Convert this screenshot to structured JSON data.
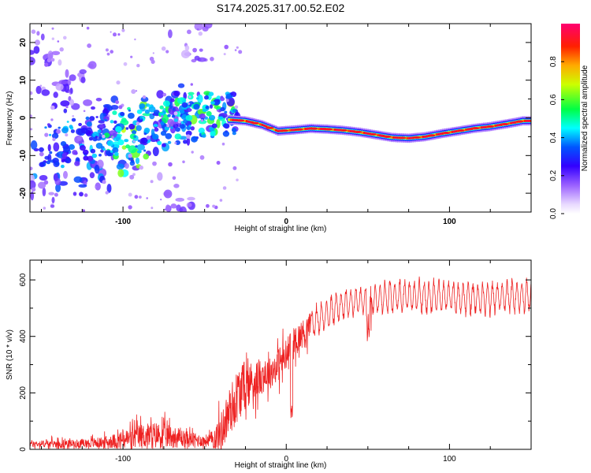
{
  "chart_data": [
    {
      "type": "heatmap",
      "title": "S174.2025.317.00.52.E02",
      "xlabel": "Height of straight line (km)",
      "ylabel": "Frequency (Hz)",
      "xlim": [
        -157,
        150
      ],
      "ylim": [
        -25,
        25
      ],
      "x_ticks": [
        -100,
        0,
        100
      ],
      "y_ticks": [
        -20,
        -10,
        0,
        10,
        20
      ],
      "x_tick_labels": [
        "-100",
        "0",
        "100"
      ],
      "y_tick_labels": [
        "-20",
        "-10",
        "0",
        "10",
        "20"
      ],
      "colorbar": {
        "label": "Normalized spectral amplitude",
        "range": [
          0,
          1
        ],
        "ticks": [
          0,
          0.2,
          0.4,
          0.6,
          0.8
        ],
        "tick_labels": [
          "0.0",
          "0.2",
          "0.4",
          "0.6",
          "0.8"
        ],
        "colors": [
          "#ffffff",
          "#b090ff",
          "#6a00ff",
          "#0000ff",
          "#00ffff",
          "#00ff00",
          "#ffff00",
          "#ff8000",
          "#ff0000",
          "#ff0080"
        ]
      },
      "ridge": {
        "x": [
          -35,
          -25,
          -15,
          -5,
          5,
          15,
          25,
          35,
          45,
          55,
          65,
          75,
          85,
          95,
          105,
          115,
          125,
          135,
          145
        ],
        "y": [
          -0.5,
          -0.8,
          -1.8,
          -3.5,
          -3.2,
          -2.8,
          -3.0,
          -3.3,
          -3.8,
          -4.5,
          -5.2,
          -5.4,
          -5.0,
          -4.2,
          -3.5,
          -2.8,
          -2.3,
          -1.6,
          -0.8
        ]
      },
      "scatter_blobs": [
        {
          "x": -150,
          "y": 18,
          "a": 0.18
        },
        {
          "x": -140,
          "y": 6,
          "a": 0.22
        },
        {
          "x": -130,
          "y": 12,
          "a": 0.18
        },
        {
          "x": -120,
          "y": -2,
          "a": 0.28
        },
        {
          "x": -145,
          "y": -12,
          "a": 0.3
        },
        {
          "x": -110,
          "y": -8,
          "a": 0.35
        },
        {
          "x": -100,
          "y": -10,
          "a": 0.5
        },
        {
          "x": -95,
          "y": -6,
          "a": 0.55
        },
        {
          "x": -85,
          "y": -4,
          "a": 0.4
        },
        {
          "x": -78,
          "y": 2,
          "a": 0.5
        },
        {
          "x": -70,
          "y": -2,
          "a": 0.38
        },
        {
          "x": -62,
          "y": 4,
          "a": 0.42
        },
        {
          "x": -55,
          "y": 2,
          "a": 0.48
        },
        {
          "x": -45,
          "y": 3,
          "a": 0.55
        },
        {
          "x": -40,
          "y": 1,
          "a": 0.5
        },
        {
          "x": -130,
          "y": -16,
          "a": 0.3
        },
        {
          "x": -105,
          "y": -14,
          "a": 0.32
        },
        {
          "x": -150,
          "y": -20,
          "a": 0.2
        },
        {
          "x": -60,
          "y": 20,
          "a": 0.15
        },
        {
          "x": -70,
          "y": -20,
          "a": 0.18
        },
        {
          "x": -115,
          "y": 0,
          "a": 0.28
        }
      ]
    },
    {
      "type": "line",
      "xlabel": "Height of straight line (km)",
      "ylabel": "SNR (10 * v/v)",
      "xlim": [
        -157,
        150
      ],
      "ylim": [
        0,
        670
      ],
      "x_ticks": [
        -100,
        0,
        100
      ],
      "y_ticks": [
        0,
        200,
        400,
        600
      ],
      "x_tick_labels": [
        "-100",
        "0",
        "100"
      ],
      "y_tick_labels": [
        "0",
        "200",
        "400",
        "600"
      ],
      "series": [
        {
          "name": "SNR",
          "color": "#ee2222",
          "envelope_x": [
            -157,
            -130,
            -110,
            -100,
            -90,
            -80,
            -70,
            -60,
            -50,
            -45,
            -40,
            -35,
            -30,
            -25,
            -20,
            -15,
            -10,
            -5,
            0,
            5,
            10,
            15,
            20,
            25,
            30,
            35,
            40,
            45,
            50,
            55,
            60,
            70,
            80,
            90,
            100,
            110,
            120,
            130,
            140,
            150
          ],
          "envelope_y": [
            20,
            20,
            25,
            35,
            45,
            50,
            45,
            35,
            30,
            35,
            60,
            130,
            190,
            230,
            240,
            260,
            270,
            300,
            330,
            380,
            410,
            440,
            460,
            480,
            500,
            510,
            520,
            525,
            525,
            530,
            540,
            540,
            540,
            540,
            540,
            535,
            535,
            540,
            540,
            540
          ],
          "amplitude_y": [
            15,
            18,
            25,
            40,
            55,
            60,
            50,
            35,
            25,
            40,
            90,
            110,
            120,
            110,
            90,
            80,
            70,
            75,
            80,
            70,
            60,
            60,
            60,
            60,
            60,
            55,
            55,
            55,
            55,
            60,
            65,
            65,
            65,
            65,
            65,
            65,
            65,
            65,
            65,
            65
          ]
        }
      ]
    }
  ]
}
